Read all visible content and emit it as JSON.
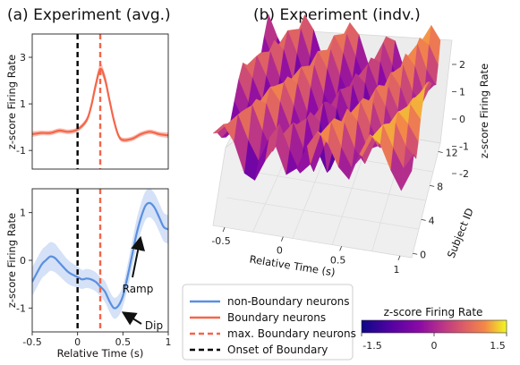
{
  "chart_data": [
    {
      "panel": "a-top",
      "type": "line",
      "title": "(a) Experiment (avg.)",
      "ylabel": "z-score Firing Rate",
      "xlim": [
        -0.5,
        1.0
      ],
      "ylim": [
        -1.8,
        4.0
      ],
      "yticks": [
        "3",
        "1",
        "-1"
      ],
      "ytick_values": [
        3,
        1,
        -1
      ],
      "series": [
        {
          "name": "Boundary neurons",
          "color": "#f4664a",
          "band_color": "#f9b3a4",
          "x": [
            -0.5,
            -0.4,
            -0.3,
            -0.2,
            -0.1,
            0.0,
            0.1,
            0.15,
            0.2,
            0.25,
            0.3,
            0.35,
            0.4,
            0.45,
            0.5,
            0.6,
            0.7,
            0.8,
            0.9,
            1.0
          ],
          "y": [
            -0.3,
            -0.25,
            -0.25,
            -0.15,
            -0.2,
            -0.1,
            0.3,
            0.9,
            1.8,
            2.5,
            2.1,
            1.2,
            0.3,
            -0.35,
            -0.55,
            -0.5,
            -0.3,
            -0.2,
            -0.3,
            -0.35
          ],
          "band": [
            0.12,
            0.1,
            0.1,
            0.1,
            0.1,
            0.1,
            0.12,
            0.15,
            0.2,
            0.22,
            0.2,
            0.16,
            0.12,
            0.1,
            0.1,
            0.1,
            0.1,
            0.1,
            0.1,
            0.12
          ]
        }
      ],
      "vlines": [
        {
          "name": "Onset of Boundary",
          "x": 0.0,
          "color": "#000000"
        },
        {
          "name": "max. Boundary neurons",
          "x": 0.25,
          "color": "#f4664a"
        }
      ]
    },
    {
      "panel": "a-bottom",
      "type": "line",
      "xlabel": "Relative Time (s)",
      "ylabel": "z-score Firing Rate",
      "xlim": [
        -0.5,
        1.0
      ],
      "ylim": [
        -1.5,
        1.5
      ],
      "xticks": [
        "-0.5",
        "0",
        "0.5",
        "1"
      ],
      "xtick_values": [
        -0.5,
        0,
        0.5,
        1.0
      ],
      "yticks": [
        "1",
        "0",
        "-1"
      ],
      "ytick_values": [
        1,
        0,
        -1
      ],
      "series": [
        {
          "name": "non-Boundary neurons",
          "color": "#5a8fe0",
          "band_color": "#cddcf6",
          "x": [
            -0.5,
            -0.4,
            -0.35,
            -0.3,
            -0.25,
            -0.2,
            -0.1,
            0.0,
            0.05,
            0.1,
            0.15,
            0.2,
            0.25,
            0.3,
            0.35,
            0.4,
            0.45,
            0.5,
            0.55,
            0.6,
            0.65,
            0.7,
            0.75,
            0.8,
            0.85,
            0.9,
            0.95,
            1.0
          ],
          "y": [
            -0.45,
            -0.1,
            0.0,
            0.08,
            0.05,
            -0.05,
            -0.25,
            -0.35,
            -0.4,
            -0.38,
            -0.4,
            -0.45,
            -0.55,
            -0.65,
            -0.85,
            -1.0,
            -0.95,
            -0.75,
            -0.35,
            0.1,
            0.55,
            0.9,
            1.15,
            1.2,
            1.1,
            0.9,
            0.7,
            0.65
          ],
          "band": [
            0.3,
            0.3,
            0.3,
            0.3,
            0.3,
            0.28,
            0.25,
            0.22,
            0.2,
            0.2,
            0.2,
            0.2,
            0.2,
            0.22,
            0.22,
            0.22,
            0.22,
            0.22,
            0.25,
            0.28,
            0.3,
            0.3,
            0.3,
            0.3,
            0.3,
            0.3,
            0.3,
            0.3
          ]
        }
      ],
      "annotations": [
        {
          "text": "Ramp",
          "target": [
            0.65,
            0.55
          ]
        },
        {
          "text": "Dip",
          "target": [
            0.42,
            -1.0
          ]
        }
      ]
    },
    {
      "panel": "b",
      "type": "heatmap",
      "title": "(b) Experiment (indv.)",
      "xlabel": "Relative Time (s)",
      "ylabel": "Subject ID",
      "zlabel": "z-score Firing Rate",
      "xticks": [
        "-0.5",
        "0",
        "0.5",
        "1"
      ],
      "yticks": [
        "0",
        "4",
        "8",
        "12"
      ],
      "zticks": [
        "2",
        "1",
        "0",
        "-1",
        "-2"
      ],
      "colorbar": {
        "label": "z-score Firing Rate",
        "ticks": [
          "-1.5",
          "0",
          "1.5"
        ],
        "range": [
          -1.5,
          1.5
        ],
        "colormap": "plasma"
      },
      "z": [
        [
          0.5,
          0.9,
          0.3,
          -0.8,
          -1.0,
          -0.2,
          0.4,
          -0.6,
          -0.3,
          0.6,
          1.2,
          0.8,
          0.0,
          -0.4,
          0.6,
          1.4,
          1.1,
          0.2,
          -0.5,
          0.3
        ],
        [
          0.2,
          0.6,
          1.0,
          0.1,
          -0.6,
          0.3,
          0.9,
          0.0,
          -0.8,
          -0.4,
          0.8,
          1.3,
          0.4,
          -0.3,
          0.2,
          1.0,
          1.5,
          0.7,
          0.0,
          0.6
        ],
        [
          -0.3,
          0.2,
          0.8,
          1.1,
          0.2,
          -0.5,
          0.2,
          0.7,
          -0.2,
          -1.0,
          0.0,
          1.1,
          1.0,
          0.1,
          -0.4,
          0.5,
          1.2,
          1.3,
          0.5,
          0.1
        ],
        [
          -0.6,
          -0.2,
          0.4,
          1.0,
          0.9,
          0.0,
          -0.6,
          0.3,
          0.6,
          -0.5,
          -1.3,
          0.3,
          1.2,
          0.8,
          -0.2,
          0.0,
          0.8,
          1.4,
          1.0,
          0.4
        ],
        [
          -0.4,
          -0.5,
          0.0,
          0.6,
          1.2,
          0.7,
          -0.2,
          -0.4,
          0.5,
          0.2,
          -1.5,
          -0.6,
          0.7,
          1.2,
          0.4,
          -0.4,
          0.4,
          1.1,
          1.4,
          0.9
        ],
        [
          0.1,
          -0.6,
          -0.4,
          0.2,
          0.9,
          1.1,
          0.3,
          -0.6,
          0.0,
          0.6,
          -0.9,
          -1.2,
          0.0,
          1.0,
          0.9,
          -0.1,
          0.0,
          0.7,
          1.3,
          1.2
        ],
        [
          0.6,
          -0.2,
          -0.7,
          -0.3,
          0.4,
          1.0,
          0.8,
          -0.2,
          -0.7,
          0.3,
          0.1,
          -1.0,
          -0.7,
          0.4,
          1.1,
          0.5,
          -0.3,
          0.3,
          1.0,
          1.4
        ],
        [
          0.9,
          0.4,
          -0.4,
          -0.8,
          -0.1,
          0.6,
          1.1,
          0.4,
          -0.6,
          -0.2,
          0.5,
          -0.3,
          -1.1,
          -0.2,
          0.9,
          0.9,
          0.1,
          -0.1,
          0.7,
          1.3
        ],
        [
          0.5,
          0.9,
          0.2,
          -0.6,
          -0.7,
          0.1,
          0.8,
          0.9,
          -0.1,
          -0.7,
          0.2,
          0.4,
          -0.6,
          -0.9,
          0.3,
          1.1,
          0.6,
          -0.3,
          0.3,
          1.0
        ],
        [
          -0.1,
          0.7,
          0.8,
          -0.1,
          -0.9,
          -0.5,
          0.4,
          1.1,
          0.5,
          -0.5,
          -0.3,
          0.5,
          0.2,
          -0.8,
          -0.3,
          0.8,
          1.1,
          0.2,
          -0.2,
          0.6
        ],
        [
          -0.5,
          0.1,
          0.9,
          0.6,
          -0.5,
          -0.9,
          -0.1,
          0.8,
          0.9,
          0.0,
          -0.7,
          0.1,
          0.6,
          -0.2,
          -0.8,
          0.2,
          1.2,
          0.8,
          -0.2,
          0.2
        ],
        [
          -0.3,
          -0.4,
          0.4,
          1.0,
          0.2,
          -0.8,
          -0.6,
          0.3,
          1.1,
          0.5,
          -0.4,
          -0.4,
          0.5,
          0.4,
          -0.6,
          -0.3,
          0.8,
          1.3,
          0.4,
          -0.1
        ],
        [
          0.3,
          -0.5,
          -0.2,
          0.7,
          0.8,
          -0.2,
          -0.9,
          -0.2,
          0.8,
          0.9,
          0.1,
          -0.7,
          0.1,
          0.8,
          0.0,
          -0.7,
          0.3,
          1.2,
          1.0,
          0.3
        ],
        [
          0.8,
          0.0,
          -0.6,
          0.1,
          1.0,
          0.5,
          -0.5,
          -0.7,
          0.3,
          1.0,
          0.6,
          -0.4,
          -0.3,
          0.7,
          0.6,
          -0.4,
          -0.2,
          0.8,
          1.4,
          0.9
        ]
      ]
    }
  ],
  "legend": {
    "entries": [
      {
        "label": "non-Boundary neurons",
        "color": "#5a8fe0",
        "style": "solid"
      },
      {
        "label": "Boundary neurons",
        "color": "#f4664a",
        "style": "solid"
      },
      {
        "label": "max. Boundary neurons",
        "color": "#f4664a",
        "style": "dashed"
      },
      {
        "label": "Onset of Boundary",
        "color": "#000000",
        "style": "dashed"
      }
    ]
  }
}
